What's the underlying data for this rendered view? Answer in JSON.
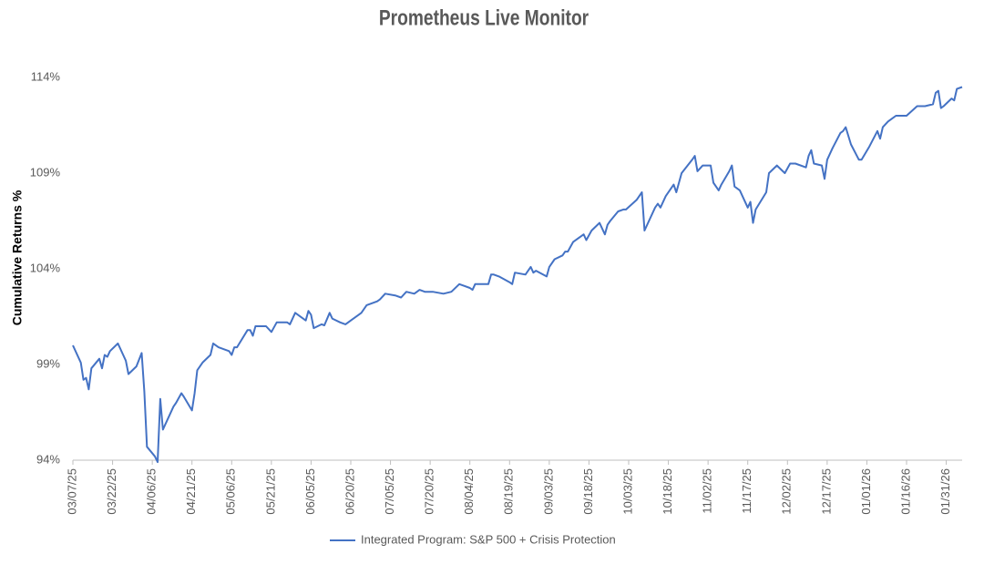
{
  "chart_data": {
    "type": "line",
    "title": "Prometheus Live Monitor",
    "y_label": "Cumulative Returns %",
    "x": [
      "03/07/25",
      "03/10/25",
      "03/11/25",
      "03/12/25",
      "03/13/25",
      "03/14/25",
      "03/17/25",
      "03/18/25",
      "03/19/25",
      "03/20/25",
      "03/21/25",
      "03/24/25",
      "03/26/25",
      "03/27/25",
      "03/28/25",
      "03/31/25",
      "04/02/25",
      "04/03/25",
      "04/04/25",
      "04/07/25",
      "04/08/25",
      "04/09/25",
      "04/10/25",
      "04/14/25",
      "04/15/25",
      "04/17/25",
      "04/18/25",
      "04/21/25",
      "04/22/25",
      "04/23/25",
      "04/25/25",
      "04/28/25",
      "04/29/25",
      "05/01/25",
      "05/05/25",
      "05/06/25",
      "05/07/25",
      "05/08/25",
      "05/12/25",
      "05/13/25",
      "05/14/25",
      "05/15/25",
      "05/19/25",
      "05/21/25",
      "05/23/25",
      "05/27/25",
      "05/28/25",
      "05/30/25",
      "06/03/25",
      "06/04/25",
      "06/05/25",
      "06/06/25",
      "06/09/25",
      "06/10/25",
      "06/12/25",
      "06/13/25",
      "06/16/25",
      "06/18/25",
      "06/20/25",
      "06/23/25",
      "06/24/25",
      "06/26/25",
      "06/30/25",
      "07/01/25",
      "07/03/25",
      "07/07/25",
      "07/09/25",
      "07/11/25",
      "07/14/25",
      "07/16/25",
      "07/18/25",
      "07/21/25",
      "07/25/25",
      "07/28/25",
      "07/31/25",
      "08/04/25",
      "08/05/25",
      "08/06/25",
      "08/08/25",
      "08/11/25",
      "08/12/25",
      "08/13/25",
      "08/15/25",
      "08/19/25",
      "08/20/25",
      "08/21/25",
      "08/25/25",
      "08/27/25",
      "08/28/25",
      "08/29/25",
      "09/02/25",
      "09/03/25",
      "09/05/25",
      "09/08/25",
      "09/09/25",
      "09/10/25",
      "09/12/25",
      "09/15/25",
      "09/16/25",
      "09/17/25",
      "09/19/25",
      "09/22/25",
      "09/24/25",
      "09/25/25",
      "09/26/25",
      "09/29/25",
      "10/01/25",
      "10/02/25",
      "10/06/25",
      "10/08/25",
      "10/09/25",
      "10/13/25",
      "10/14/25",
      "10/15/25",
      "10/17/25",
      "10/20/25",
      "10/21/25",
      "10/23/25",
      "10/27/25",
      "10/28/25",
      "10/29/25",
      "10/31/25",
      "11/03/25",
      "11/04/25",
      "11/06/25",
      "11/07/25",
      "11/10/25",
      "11/11/25",
      "11/12/25",
      "11/14/25",
      "11/17/25",
      "11/18/25",
      "11/19/25",
      "11/20/25",
      "11/24/25",
      "11/25/25",
      "11/28/25",
      "12/01/25",
      "12/03/25",
      "12/05/25",
      "12/09/25",
      "12/10/25",
      "12/11/25",
      "12/12/25",
      "12/15/25",
      "12/16/25",
      "12/17/25",
      "12/19/25",
      "12/22/25",
      "12/23/25",
      "12/24/25",
      "12/26/25",
      "12/29/25",
      "12/30/25",
      "01/02/26",
      "01/05/26",
      "01/06/26",
      "01/07/26",
      "01/09/26",
      "01/12/26",
      "01/16/26",
      "01/20/26",
      "01/23/26",
      "01/26/26",
      "01/27/26",
      "01/28/26",
      "01/29/26",
      "01/30/26",
      "02/02/26",
      "02/03/26",
      "02/04/26",
      "02/06/26"
    ],
    "series": [
      {
        "name": "Integrated Program: S&P 500 + Crisis Protection",
        "color": "#4472c4",
        "values": [
          100.0,
          99.1,
          98.2,
          98.3,
          97.7,
          98.8,
          99.3,
          98.8,
          99.5,
          99.4,
          99.7,
          100.1,
          99.5,
          99.2,
          98.5,
          98.9,
          99.6,
          97.6,
          94.7,
          94.2,
          93.9,
          97.2,
          95.6,
          96.8,
          97.0,
          97.5,
          97.3,
          96.6,
          97.5,
          98.7,
          99.1,
          99.5,
          100.1,
          99.9,
          99.7,
          99.5,
          99.9,
          99.9,
          100.8,
          100.8,
          100.5,
          101.0,
          101.0,
          100.7,
          101.2,
          101.2,
          101.1,
          101.7,
          101.3,
          101.8,
          101.6,
          100.9,
          101.1,
          101.05,
          101.7,
          101.4,
          101.2,
          101.1,
          101.3,
          101.6,
          101.7,
          102.1,
          102.3,
          102.4,
          102.7,
          102.6,
          102.5,
          102.8,
          102.7,
          102.9,
          102.8,
          102.8,
          102.7,
          102.8,
          103.2,
          103.0,
          102.9,
          103.2,
          103.2,
          103.2,
          103.7,
          103.7,
          103.6,
          103.3,
          103.2,
          103.8,
          103.7,
          104.1,
          103.8,
          103.9,
          103.6,
          104.1,
          104.5,
          104.7,
          104.9,
          104.9,
          105.4,
          105.7,
          105.8,
          105.5,
          106.0,
          106.4,
          105.8,
          106.3,
          106.5,
          107.0,
          107.1,
          107.1,
          107.6,
          108.0,
          106.0,
          107.2,
          107.4,
          107.2,
          107.8,
          108.4,
          108.0,
          109.0,
          109.7,
          109.9,
          109.1,
          109.4,
          109.4,
          108.5,
          108.1,
          108.4,
          109.1,
          109.4,
          108.3,
          108.1,
          107.2,
          107.5,
          106.4,
          107.1,
          108.0,
          109.0,
          109.4,
          109.0,
          109.5,
          109.5,
          109.3,
          109.9,
          110.2,
          109.5,
          109.4,
          108.7,
          109.7,
          110.3,
          111.1,
          111.2,
          111.4,
          110.5,
          109.7,
          109.7,
          110.4,
          111.2,
          110.8,
          111.4,
          111.7,
          112.0,
          112.0,
          112.5,
          112.5,
          112.6,
          113.2,
          113.3,
          112.4,
          112.5,
          112.9,
          112.8,
          113.4,
          113.5
        ]
      }
    ],
    "xlim": [
      "03/07/25",
      "02/06/26"
    ],
    "xticks": [
      "03/07/25",
      "03/22/25",
      "04/06/25",
      "04/21/25",
      "05/06/25",
      "05/21/25",
      "06/05/25",
      "06/20/25",
      "07/05/25",
      "07/20/25",
      "08/04/25",
      "08/19/25",
      "09/03/25",
      "09/18/25",
      "10/03/25",
      "10/18/25",
      "11/02/25",
      "11/17/25",
      "12/02/25",
      "12/17/25",
      "01/01/26",
      "01/16/26",
      "01/31/26"
    ],
    "ylim": [
      94,
      114
    ],
    "yticks": [
      {
        "value": 94,
        "label": "94%"
      },
      {
        "value": 99,
        "label": "99%"
      },
      {
        "value": 104,
        "label": "104%"
      },
      {
        "value": 109,
        "label": "109%"
      },
      {
        "value": 114,
        "label": "114%"
      }
    ],
    "grid": false,
    "legend": "bottom"
  }
}
